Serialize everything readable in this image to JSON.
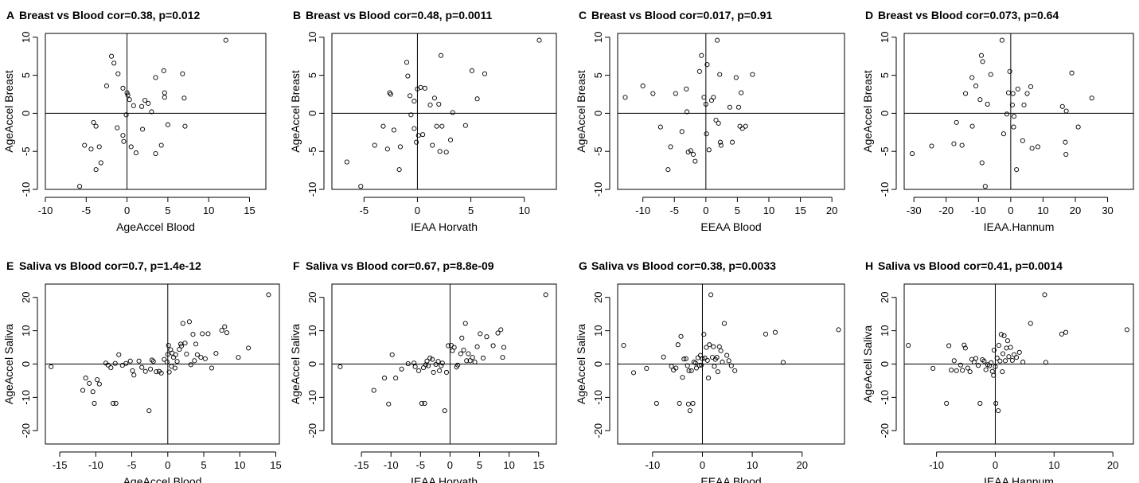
{
  "chart_data": [
    {
      "type": "scatter",
      "letter": "A",
      "title": "Breast vs Blood cor=0.38, p=0.012",
      "xlabel": "AgeAccel Blood",
      "ylabel": "AgeAccel Breast",
      "xlim": [
        -10,
        17
      ],
      "ylim": [
        -10,
        10.5
      ],
      "xticks": [
        -10,
        -5,
        0,
        5,
        10,
        15
      ],
      "yticks": [
        -10,
        -5,
        0,
        5,
        10
      ],
      "x": [
        -5.8,
        -5.2,
        -4.4,
        -4.1,
        -3.8,
        -3.4,
        -3.8,
        -3.2,
        -2.5,
        -1.9,
        -1.6,
        -1.2,
        -1.1,
        -0.5,
        -0.5,
        -0.4,
        -0.1,
        0.0,
        0.1,
        0.3,
        0.5,
        0.8,
        1.1,
        1.8,
        1.9,
        2.2,
        2.6,
        3.0,
        3.5,
        3.5,
        4.2,
        4.5,
        4.6,
        4.6,
        5.0,
        6.8,
        7.0,
        7.1,
        12.1
      ],
      "y": [
        -9.6,
        -4.2,
        -4.7,
        -1.2,
        -1.7,
        -4.4,
        -7.4,
        -6.5,
        3.6,
        7.5,
        6.6,
        -1.9,
        5.2,
        3.3,
        -2.9,
        -3.7,
        -0.2,
        2.7,
        2.4,
        1.8,
        -4.4,
        1.0,
        -5.2,
        0.9,
        -2.1,
        1.7,
        1.3,
        0.2,
        -5.3,
        4.7,
        -4.2,
        5.6,
        2.7,
        2.1,
        -1.5,
        5.2,
        2.0,
        -1.7,
        9.6
      ]
    },
    {
      "type": "scatter",
      "letter": "B",
      "title": "Breast vs Blood cor=0.48, p=0.0011",
      "xlabel": "IEAA Horvath",
      "ylabel": "AgeAccel Breast",
      "xlim": [
        -8,
        13
      ],
      "ylim": [
        -10,
        10.5
      ],
      "xticks": [
        -5,
        0,
        5,
        10
      ],
      "yticks": [
        -10,
        -5,
        0,
        5,
        10
      ],
      "x": [
        -6.6,
        -5.3,
        -4.0,
        -3.2,
        -2.8,
        -2.6,
        -2.5,
        -2.2,
        -1.7,
        -1.6,
        -1.0,
        -0.9,
        -0.7,
        -0.6,
        -0.3,
        -0.3,
        -0.1,
        0.0,
        0.1,
        0.3,
        0.5,
        0.7,
        1.2,
        1.4,
        1.6,
        1.8,
        2.0,
        2.1,
        2.2,
        2.3,
        2.7,
        3.1,
        3.3,
        4.5,
        5.1,
        5.6,
        6.3,
        11.4
      ],
      "y": [
        -6.4,
        -9.6,
        -4.2,
        -1.7,
        -4.7,
        2.7,
        2.5,
        -2.2,
        -7.4,
        -4.4,
        6.7,
        4.9,
        2.3,
        -0.2,
        1.6,
        -2.0,
        -3.8,
        3.2,
        -2.9,
        3.4,
        -2.8,
        3.3,
        1.1,
        -4.2,
        2.0,
        -1.7,
        1.2,
        -5.0,
        7.6,
        -1.7,
        -5.1,
        -3.5,
        0.1,
        -1.6,
        5.6,
        1.9,
        5.2,
        9.6
      ]
    },
    {
      "type": "scatter",
      "letter": "C",
      "title": "Breast vs Blood cor=0.017, p=0.91",
      "xlabel": "EEAA Blood",
      "ylabel": "AgeAccel Breast",
      "xlim": [
        -14,
        22
      ],
      "ylim": [
        -10,
        10.5
      ],
      "xticks": [
        -10,
        -5,
        0,
        5,
        10,
        15,
        20
      ],
      "yticks": [
        -10,
        -5,
        0,
        5,
        10
      ],
      "x": [
        -12.8,
        -10.0,
        -8.4,
        -7.2,
        -6.0,
        -5.6,
        -4.8,
        -3.8,
        -3.1,
        -3.0,
        -2.8,
        -2.4,
        -2.0,
        -1.7,
        -1.0,
        -0.7,
        -0.3,
        0.0,
        0.1,
        0.2,
        0.5,
        0.9,
        1.2,
        1.6,
        1.8,
        2.0,
        2.2,
        2.3,
        2.4,
        3.8,
        4.2,
        4.8,
        5.2,
        5.4,
        5.6,
        5.8,
        6.3,
        7.4
      ],
      "y": [
        2.1,
        3.6,
        2.6,
        -1.8,
        -7.4,
        -4.4,
        2.6,
        -2.4,
        3.2,
        0.2,
        -5.1,
        -4.9,
        -5.4,
        -6.3,
        5.5,
        7.6,
        2.1,
        1.2,
        -2.7,
        6.4,
        -4.8,
        1.7,
        2.1,
        -0.9,
        9.6,
        -1.3,
        5.1,
        -3.8,
        -4.2,
        0.8,
        -3.8,
        4.7,
        0.8,
        -1.7,
        2.7,
        -2.0,
        -1.7,
        5.1
      ]
    },
    {
      "type": "scatter",
      "letter": "D",
      "title": "Breast vs Blood cor=0.073, p=0.64",
      "xlabel": "IEAA.Hannum",
      "ylabel": "AgeAccel Breast",
      "xlim": [
        -33,
        38
      ],
      "ylim": [
        -10,
        10.5
      ],
      "xticks": [
        -30,
        -20,
        -10,
        0,
        10,
        20,
        30
      ],
      "yticks": [
        -10,
        -5,
        0,
        5,
        10
      ],
      "x": [
        -30.5,
        -24.5,
        -17.6,
        -16.8,
        -15.1,
        -14.0,
        -12.0,
        -11.9,
        -10.8,
        -9.5,
        -9.1,
        -8.9,
        -8.7,
        -7.9,
        -7.2,
        -6.2,
        -2.7,
        -2.2,
        -1.2,
        -0.7,
        -0.3,
        0.5,
        0.7,
        0.9,
        1.0,
        1.8,
        2.2,
        3.7,
        4.1,
        5.1,
        6.2,
        6.6,
        8.4,
        16.0,
        16.9,
        17.1,
        17.2,
        18.9,
        20.9,
        25.1
      ],
      "y": [
        -5.3,
        -4.3,
        -4.0,
        -1.2,
        -4.2,
        2.6,
        4.7,
        -1.7,
        3.6,
        1.8,
        7.6,
        -6.5,
        6.8,
        -9.6,
        1.2,
        5.1,
        9.6,
        -2.7,
        -0.1,
        2.7,
        5.5,
        1.1,
        2.6,
        -1.8,
        -0.4,
        -7.4,
        3.2,
        -3.6,
        1.1,
        2.6,
        3.5,
        -4.6,
        -4.4,
        0.9,
        -3.8,
        -5.4,
        0.3,
        5.3,
        -1.8,
        2.0
      ]
    },
    {
      "type": "scatter",
      "letter": "E",
      "title": "Saliva vs Blood cor=0.7, p=1.4e-12",
      "xlabel": "AgeAccel Blood",
      "ylabel": "AgeAccel Saliva",
      "xlim": [
        -17,
        15.5
      ],
      "ylim": [
        -24,
        24
      ],
      "xticks": [
        -15,
        -10,
        -5,
        0,
        5,
        10,
        15
      ],
      "yticks": [
        -20,
        -10,
        0,
        10,
        20
      ],
      "x": [
        -16.2,
        -11.8,
        -11.4,
        -10.9,
        -10.4,
        -10.2,
        -9.8,
        -9.5,
        -8.6,
        -8.3,
        -7.9,
        -7.6,
        -7.3,
        -7.2,
        -6.8,
        -6.3,
        -5.8,
        -5.2,
        -4.9,
        -4.7,
        -4.0,
        -3.6,
        -3.1,
        -2.6,
        -2.4,
        -2.2,
        -2.0,
        -1.6,
        -1.2,
        -0.9,
        -0.5,
        -0.1,
        0.0,
        0.1,
        0.2,
        0.4,
        0.5,
        0.6,
        0.8,
        1.0,
        1.1,
        1.3,
        1.6,
        1.8,
        1.9,
        2.1,
        2.4,
        2.6,
        3.0,
        3.2,
        3.5,
        3.7,
        3.9,
        4.1,
        4.6,
        4.8,
        5.2,
        5.6,
        6.1,
        6.7,
        7.5,
        7.9,
        8.2,
        9.8,
        11.2,
        14.0
      ],
      "y": [
        -0.8,
        -7.9,
        -4.2,
        -5.8,
        -8.3,
        -11.8,
        -4.7,
        -6.0,
        0.3,
        -0.3,
        -1.1,
        -11.8,
        0.2,
        -11.8,
        2.8,
        -0.4,
        0.2,
        0.9,
        -2.0,
        -3.3,
        0.9,
        -1.0,
        -2.2,
        -14.0,
        -1.5,
        1.2,
        0.8,
        -2.3,
        -2.2,
        -2.7,
        1.4,
        0.6,
        2.9,
        5.6,
        -2.4,
        4.3,
        -0.7,
        3.3,
        2.0,
        -1.2,
        2.8,
        0.8,
        4.4,
        6.0,
        5.4,
        12.2,
        6.3,
        3.0,
        12.7,
        -0.2,
        8.9,
        1.0,
        6.0,
        2.8,
        2.0,
        9.1,
        1.6,
        9.1,
        -1.2,
        3.2,
        10.1,
        11.2,
        9.4,
        2.0,
        4.8,
        20.8
      ]
    },
    {
      "type": "scatter",
      "letter": "F",
      "title": "Saliva vs Blood cor=0.67, p=8.8e-09",
      "xlabel": "IEAA Horvath",
      "ylabel": "AgeAccel Saliva",
      "xlim": [
        -20,
        18
      ],
      "ylim": [
        -24,
        24
      ],
      "xticks": [
        -15,
        -10,
        -5,
        0,
        5,
        10,
        15
      ],
      "yticks": [
        -20,
        -10,
        0,
        10,
        20
      ],
      "x": [
        -18.6,
        -12.9,
        -11.1,
        -10.4,
        -9.8,
        -9.2,
        -8.2,
        -7.1,
        -6.1,
        -5.9,
        -5.3,
        -4.8,
        -4.5,
        -4.3,
        -4.1,
        -3.9,
        -3.7,
        -3.4,
        -3.0,
        -2.8,
        -2.4,
        -2.0,
        -1.8,
        -1.5,
        -1.3,
        -0.9,
        -0.6,
        -0.3,
        0.2,
        0.4,
        0.7,
        1.1,
        1.3,
        1.8,
        2.0,
        2.3,
        2.6,
        2.8,
        3.1,
        3.4,
        3.8,
        4.2,
        4.6,
        5.1,
        5.6,
        6.2,
        7.3,
        8.1,
        8.6,
        8.9,
        9.1,
        16.2
      ],
      "y": [
        -0.8,
        -7.9,
        -4.2,
        -12.0,
        2.8,
        -4.2,
        -1.5,
        0.1,
        0.3,
        -0.8,
        -2.0,
        -11.8,
        -1.1,
        -11.8,
        -0.2,
        0.9,
        -0.5,
        1.8,
        1.4,
        -2.5,
        -0.1,
        0.8,
        -2.0,
        -0.5,
        0.3,
        -14.0,
        -2.5,
        5.5,
        5.6,
        4.0,
        5.0,
        -0.9,
        -0.3,
        3.1,
        7.8,
        4.2,
        12.2,
        1.0,
        3.1,
        1.0,
        2.0,
        0.6,
        5.2,
        9.1,
        1.8,
        8.2,
        5.5,
        9.3,
        10.3,
        2.0,
        5.0,
        20.8
      ]
    },
    {
      "type": "scatter",
      "letter": "G",
      "title": "Saliva vs Blood cor=0.38, p=0.0033",
      "xlabel": "EEAA Blood",
      "ylabel": "AgeAccel Saliva",
      "xlim": [
        -17,
        28.5
      ],
      "ylim": [
        -24,
        24
      ],
      "xticks": [
        -10,
        0,
        10,
        20
      ],
      "yticks": [
        -20,
        -10,
        0,
        10,
        20
      ],
      "x": [
        -15.8,
        -13.8,
        -11.2,
        -9.2,
        -7.8,
        -6.2,
        -5.8,
        -5.3,
        -4.9,
        -4.6,
        -4.3,
        -4.0,
        -3.7,
        -3.3,
        -3.0,
        -2.8,
        -2.7,
        -2.5,
        -2.2,
        -1.9,
        -1.7,
        -1.4,
        -1.2,
        -0.9,
        -0.6,
        -0.4,
        -0.2,
        0.0,
        0.3,
        0.5,
        0.8,
        1.0,
        1.2,
        1.4,
        1.7,
        2.0,
        2.2,
        2.4,
        2.6,
        2.9,
        3.1,
        3.4,
        3.7,
        4.0,
        4.4,
        4.9,
        5.3,
        5.8,
        6.5,
        12.7,
        14.6,
        16.2,
        27.3
      ],
      "y": [
        5.6,
        -2.6,
        -1.3,
        -11.8,
        2.1,
        -0.7,
        -1.8,
        -1.2,
        5.8,
        -11.8,
        8.3,
        -4.0,
        1.5,
        1.6,
        -0.5,
        -12.0,
        -2.0,
        -14.0,
        -2.0,
        -11.8,
        0.6,
        0.3,
        -1.2,
        1.9,
        -0.4,
        2.6,
        -0.3,
        1.6,
        8.9,
        1.8,
        5.0,
        1.1,
        -4.2,
        5.8,
        20.8,
        2.0,
        5.2,
        -0.7,
        1.4,
        2.0,
        -2.3,
        5.2,
        4.0,
        0.6,
        12.2,
        2.6,
        1.0,
        -0.5,
        -2.0,
        9.0,
        9.5,
        0.5,
        10.3
      ]
    },
    {
      "type": "scatter",
      "letter": "H",
      "title": "Saliva vs Blood cor=0.41, p=0.0014",
      "xlabel": "IEAA Hannum",
      "ylabel": "AgeAcell Saliva",
      "xlim": [
        -15.5,
        23.5
      ],
      "ylim": [
        -24,
        24
      ],
      "xticks": [
        -10,
        0,
        10,
        20
      ],
      "yticks": [
        -20,
        -10,
        0,
        10,
        20
      ],
      "x": [
        -14.8,
        -10.6,
        -8.3,
        -7.9,
        -7.5,
        -7.0,
        -6.6,
        -5.9,
        -5.6,
        -5.3,
        -5.1,
        -4.7,
        -4.3,
        -4.0,
        -3.6,
        -3.3,
        -2.9,
        -2.6,
        -2.2,
        -1.9,
        -1.6,
        -1.3,
        -1.0,
        -0.7,
        -0.5,
        -0.3,
        -0.2,
        0.0,
        0.1,
        0.3,
        0.5,
        0.6,
        0.8,
        1.0,
        1.2,
        1.3,
        1.5,
        1.7,
        1.9,
        2.1,
        2.3,
        2.6,
        2.9,
        3.2,
        3.6,
        4.1,
        4.7,
        6.0,
        8.4,
        8.6,
        11.3,
        12.0,
        22.4
      ],
      "y": [
        5.6,
        -1.3,
        -11.8,
        5.5,
        -1.8,
        1.0,
        -2.0,
        -0.3,
        -1.9,
        5.7,
        4.8,
        -1.2,
        -2.3,
        1.4,
        0.6,
        1.7,
        -0.4,
        -11.8,
        1.3,
        0.9,
        -1.7,
        -0.2,
        -0.5,
        0.4,
        -2.2,
        -3.4,
        4.2,
        -0.8,
        -11.8,
        1.8,
        -14.0,
        5.6,
        0.9,
        8.9,
        -2.3,
        3.1,
        8.5,
        1.0,
        4.8,
        7.0,
        2.2,
        5.0,
        1.1,
        2.8,
        2.0,
        3.5,
        0.6,
        12.2,
        20.8,
        0.5,
        9.0,
        9.5,
        10.3
      ]
    }
  ]
}
